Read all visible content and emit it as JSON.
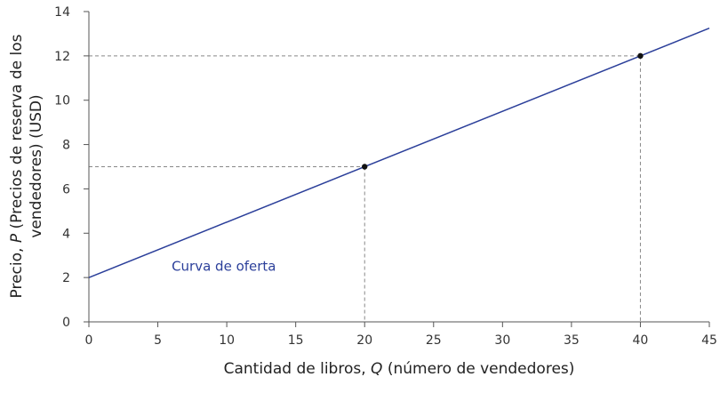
{
  "chart_data": {
    "type": "line",
    "xlabel_parts": [
      "Cantidad de libros, ",
      "Q",
      " (número de vendedores)"
    ],
    "ylabel_line1_parts": [
      "Precio, ",
      "P",
      " (Precios de reserva de los"
    ],
    "ylabel_line2": "vendedores) (USD)",
    "xlim": [
      0,
      45
    ],
    "ylim": [
      0,
      14
    ],
    "x_ticks": [
      0,
      5,
      10,
      15,
      20,
      25,
      30,
      35,
      40,
      45
    ],
    "y_ticks": [
      0,
      2,
      4,
      6,
      8,
      10,
      12,
      14
    ],
    "grid": false,
    "series": [
      {
        "name": "Curva de oferta",
        "color": "#2b3f9a",
        "x": [
          0,
          45
        ],
        "y": [
          2,
          13.25
        ]
      }
    ],
    "points": [
      {
        "x": 20,
        "y": 7
      },
      {
        "x": 40,
        "y": 12
      }
    ],
    "reference_lines": [
      {
        "x": 20,
        "y": 7
      },
      {
        "x": 40,
        "y": 12
      }
    ],
    "series_label_position": {
      "x": 6,
      "y": 2.5
    },
    "colors": {
      "axis": "#555555",
      "reference": "#888888",
      "point": "#111111",
      "text": "#222222"
    }
  }
}
